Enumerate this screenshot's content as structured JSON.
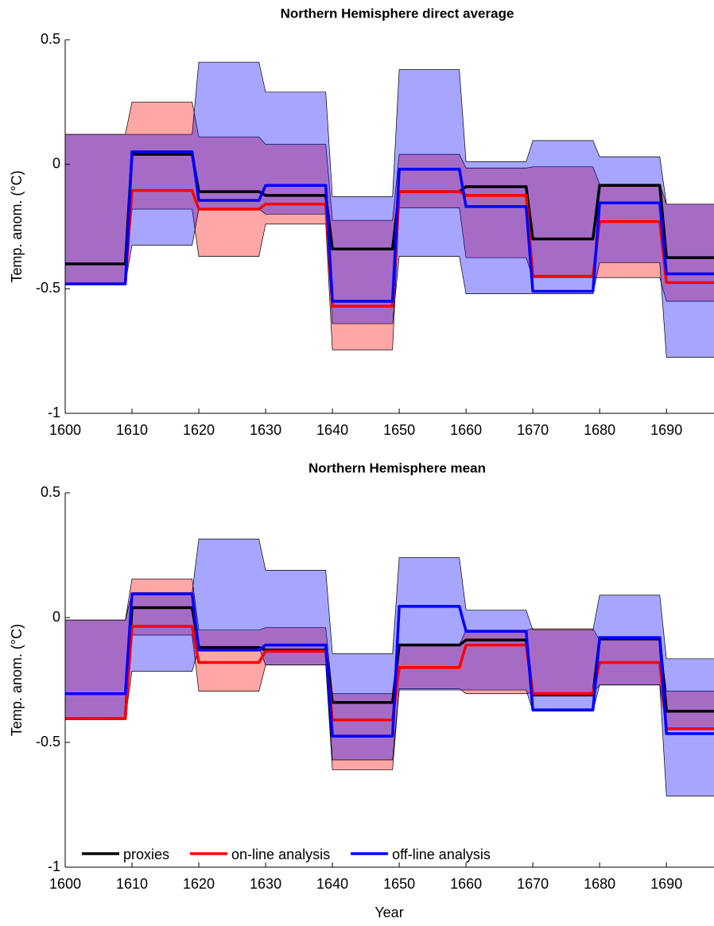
{
  "chart_data": [
    {
      "type": "line",
      "title": "Northern Hemisphere direct average",
      "ylabel": "Temp. anom. (°C)",
      "x": [
        1600,
        1609,
        1610,
        1619,
        1620,
        1629,
        1630,
        1639,
        1640,
        1649,
        1650,
        1659,
        1660,
        1669,
        1670,
        1679,
        1680,
        1689,
        1690,
        1699
      ],
      "xlim": [
        1600,
        1697
      ],
      "xticks": [
        1600,
        1610,
        1620,
        1630,
        1640,
        1650,
        1660,
        1670,
        1680,
        1690
      ],
      "ylim": [
        -1,
        0.5
      ],
      "yticks": [
        -1,
        -0.5,
        0,
        0.5
      ],
      "bands": [
        {
          "color": "#ff0000",
          "upper": [
            0.12,
            0.12,
            0.25,
            0.25,
            0.11,
            0.11,
            0.08,
            0.08,
            -0.225,
            -0.225,
            0.04,
            0.04,
            -0.015,
            -0.015,
            -0.01,
            -0.01,
            -0.08,
            -0.08,
            -0.16,
            -0.16
          ],
          "lower": [
            -0.48,
            -0.48,
            -0.18,
            -0.18,
            -0.37,
            -0.37,
            -0.24,
            -0.24,
            -0.745,
            -0.745,
            -0.175,
            -0.175,
            -0.375,
            -0.375,
            -0.455,
            -0.455,
            -0.455,
            -0.455,
            -0.55,
            -0.55
          ]
        },
        {
          "color": "#0000ff",
          "upper": [
            0.12,
            0.12,
            0.12,
            0.12,
            0.41,
            0.41,
            0.29,
            0.29,
            -0.13,
            -0.13,
            0.38,
            0.38,
            0.01,
            0.01,
            0.095,
            0.095,
            0.03,
            0.03,
            -0.16,
            -0.16
          ],
          "lower": [
            -0.48,
            -0.48,
            -0.325,
            -0.325,
            -0.18,
            -0.18,
            -0.2,
            -0.2,
            -0.64,
            -0.64,
            -0.37,
            -0.37,
            -0.52,
            -0.52,
            -0.52,
            -0.52,
            -0.395,
            -0.395,
            -0.775,
            -0.775
          ]
        }
      ],
      "series": [
        {
          "color": "#000000",
          "values": [
            -0.4,
            -0.4,
            0.04,
            0.04,
            -0.11,
            -0.11,
            -0.125,
            -0.125,
            -0.34,
            -0.34,
            -0.11,
            -0.11,
            -0.09,
            -0.09,
            -0.3,
            -0.3,
            -0.085,
            -0.085,
            -0.375,
            -0.375
          ]
        },
        {
          "color": "#ff0000",
          "values": [
            -0.48,
            -0.48,
            -0.105,
            -0.105,
            -0.18,
            -0.18,
            -0.16,
            -0.16,
            -0.57,
            -0.57,
            -0.11,
            -0.11,
            -0.125,
            -0.125,
            -0.45,
            -0.45,
            -0.23,
            -0.23,
            -0.475,
            -0.475
          ]
        },
        {
          "color": "#0000ff",
          "values": [
            -0.48,
            -0.48,
            0.05,
            0.05,
            -0.145,
            -0.145,
            -0.085,
            -0.085,
            -0.55,
            -0.55,
            -0.02,
            -0.02,
            -0.17,
            -0.17,
            -0.51,
            -0.51,
            -0.155,
            -0.155,
            -0.44,
            -0.44
          ]
        }
      ]
    },
    {
      "type": "line",
      "title": "Northern Hemisphere mean",
      "ylabel": "Temp. anom. (°C)",
      "xlabel": "Year",
      "legend": "lower left",
      "x": [
        1600,
        1609,
        1610,
        1619,
        1620,
        1629,
        1630,
        1639,
        1640,
        1649,
        1650,
        1659,
        1660,
        1669,
        1670,
        1679,
        1680,
        1689,
        1690,
        1699
      ],
      "xlim": [
        1600,
        1697
      ],
      "xticks": [
        1600,
        1610,
        1620,
        1630,
        1640,
        1650,
        1660,
        1670,
        1680,
        1690
      ],
      "ylim": [
        -1,
        0.5
      ],
      "yticks": [
        -1,
        -0.5,
        0,
        0.5
      ],
      "bands": [
        {
          "color": "#ff0000",
          "upper": [
            -0.01,
            -0.01,
            0.155,
            0.155,
            -0.05,
            -0.05,
            -0.04,
            -0.04,
            -0.305,
            -0.305,
            -0.11,
            -0.11,
            -0.05,
            -0.05,
            -0.045,
            -0.045,
            -0.09,
            -0.09,
            -0.295,
            -0.295
          ],
          "lower": [
            -0.405,
            -0.405,
            -0.07,
            -0.07,
            -0.295,
            -0.295,
            -0.19,
            -0.19,
            -0.61,
            -0.61,
            -0.285,
            -0.285,
            -0.305,
            -0.305,
            -0.3,
            -0.3,
            -0.27,
            -0.27,
            -0.45,
            -0.45
          ]
        },
        {
          "color": "#0000ff",
          "upper": [
            -0.01,
            -0.01,
            0.1,
            0.1,
            0.315,
            0.315,
            0.19,
            0.19,
            -0.145,
            -0.145,
            0.24,
            0.24,
            0.03,
            0.03,
            -0.05,
            -0.05,
            0.09,
            0.09,
            -0.165,
            -0.165
          ],
          "lower": [
            -0.405,
            -0.405,
            -0.215,
            -0.215,
            -0.12,
            -0.12,
            -0.19,
            -0.19,
            -0.57,
            -0.57,
            -0.29,
            -0.29,
            -0.29,
            -0.29,
            -0.375,
            -0.375,
            -0.27,
            -0.27,
            -0.715,
            -0.715
          ]
        }
      ],
      "series": [
        {
          "name": "proxies",
          "color": "#000000",
          "values": [
            -0.405,
            -0.405,
            0.04,
            0.04,
            -0.12,
            -0.12,
            -0.13,
            -0.13,
            -0.34,
            -0.34,
            -0.11,
            -0.11,
            -0.09,
            -0.09,
            -0.31,
            -0.31,
            -0.085,
            -0.085,
            -0.375,
            -0.375
          ]
        },
        {
          "name": "on-line analysis",
          "color": "#ff0000",
          "values": [
            -0.405,
            -0.405,
            -0.035,
            -0.035,
            -0.18,
            -0.18,
            -0.135,
            -0.135,
            -0.41,
            -0.41,
            -0.2,
            -0.2,
            -0.11,
            -0.11,
            -0.305,
            -0.305,
            -0.18,
            -0.18,
            -0.445,
            -0.445
          ]
        },
        {
          "name": "off-line analysis",
          "color": "#0000ff",
          "values": [
            -0.305,
            -0.305,
            0.095,
            0.095,
            -0.13,
            -0.13,
            -0.11,
            -0.11,
            -0.475,
            -0.475,
            0.045,
            0.045,
            -0.055,
            -0.055,
            -0.37,
            -0.37,
            -0.08,
            -0.08,
            -0.465,
            -0.465
          ]
        }
      ]
    }
  ]
}
